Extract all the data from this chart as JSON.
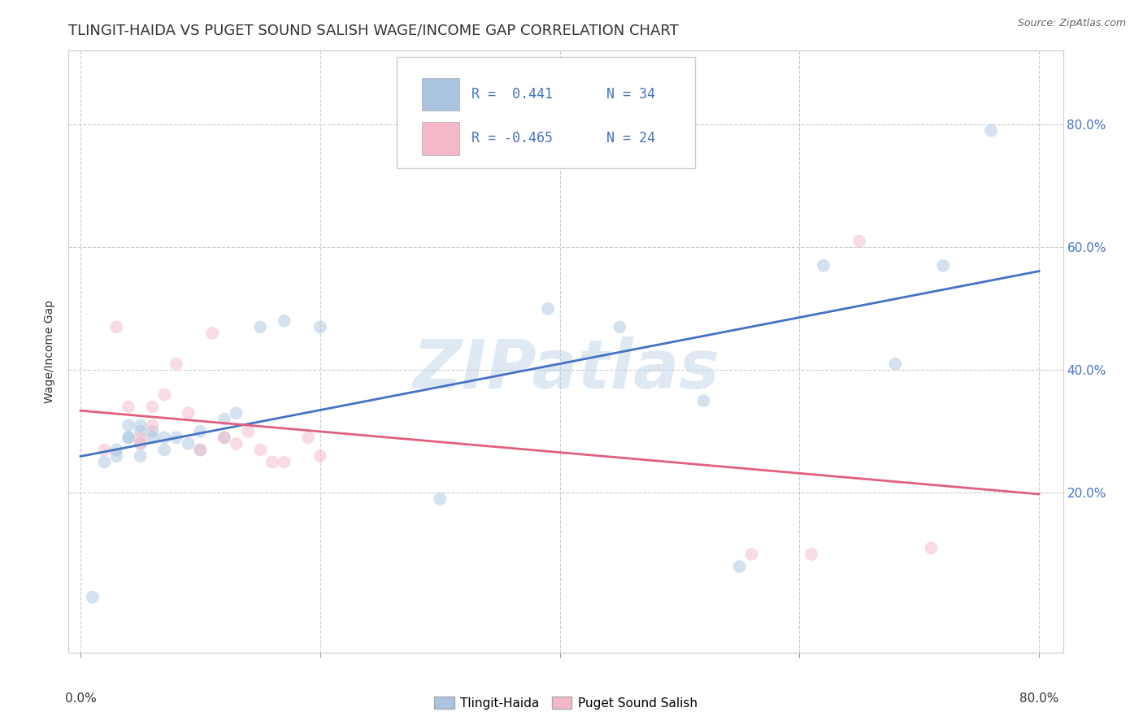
{
  "title": "TLINGIT-HAIDA VS PUGET SOUND SALISH WAGE/INCOME GAP CORRELATION CHART",
  "source": "Source: ZipAtlas.com",
  "ylabel": "Wage/Income Gap",
  "xlim": [
    -0.01,
    0.82
  ],
  "ylim": [
    -0.06,
    0.92
  ],
  "xticks": [
    0.0,
    0.2,
    0.4,
    0.6,
    0.8
  ],
  "xtick_labels_left": [
    "0.0%"
  ],
  "xtick_labels_right": [
    "80.0%"
  ],
  "yticks_right": [
    0.2,
    0.4,
    0.6,
    0.8
  ],
  "ytick_labels_right": [
    "20.0%",
    "40.0%",
    "60.0%",
    "80.0%"
  ],
  "watermark": "ZIPatlas",
  "legend_r1": "R =  0.441",
  "legend_n1": "N = 34",
  "legend_r2": "R = -0.465",
  "legend_n2": "N = 24",
  "blue_color": "#aac4e0",
  "pink_color": "#f4b8c8",
  "blue_line_color": "#4472c4",
  "pink_line_color": "#e06080",
  "tlingit_x": [
    0.01,
    0.02,
    0.03,
    0.03,
    0.04,
    0.04,
    0.04,
    0.05,
    0.05,
    0.05,
    0.05,
    0.06,
    0.06,
    0.07,
    0.07,
    0.08,
    0.09,
    0.1,
    0.1,
    0.12,
    0.12,
    0.13,
    0.15,
    0.17,
    0.2,
    0.3,
    0.39,
    0.45,
    0.52,
    0.55,
    0.62,
    0.68,
    0.72,
    0.76
  ],
  "tlingit_y": [
    0.03,
    0.25,
    0.26,
    0.27,
    0.29,
    0.29,
    0.31,
    0.26,
    0.28,
    0.3,
    0.31,
    0.29,
    0.3,
    0.27,
    0.29,
    0.29,
    0.28,
    0.27,
    0.3,
    0.29,
    0.32,
    0.33,
    0.47,
    0.48,
    0.47,
    0.19,
    0.5,
    0.47,
    0.35,
    0.08,
    0.57,
    0.41,
    0.57,
    0.79
  ],
  "salish_x": [
    0.02,
    0.03,
    0.04,
    0.05,
    0.05,
    0.06,
    0.06,
    0.07,
    0.08,
    0.09,
    0.1,
    0.11,
    0.12,
    0.13,
    0.14,
    0.15,
    0.16,
    0.17,
    0.19,
    0.2,
    0.56,
    0.61,
    0.65,
    0.71
  ],
  "salish_y": [
    0.27,
    0.47,
    0.34,
    0.28,
    0.29,
    0.31,
    0.34,
    0.36,
    0.41,
    0.33,
    0.27,
    0.46,
    0.29,
    0.28,
    0.3,
    0.27,
    0.25,
    0.25,
    0.29,
    0.26,
    0.1,
    0.1,
    0.61,
    0.11
  ],
  "title_fontsize": 13,
  "axis_label_fontsize": 10,
  "tick_fontsize": 11,
  "legend_fontsize": 12,
  "watermark_fontsize": 60,
  "marker_size": 130,
  "marker_alpha": 0.5,
  "line_width": 2.0,
  "background_color": "#ffffff",
  "grid_color": "#cccccc",
  "right_ytick_color": "#4472c4",
  "legend_text_color": "#4472c4"
}
